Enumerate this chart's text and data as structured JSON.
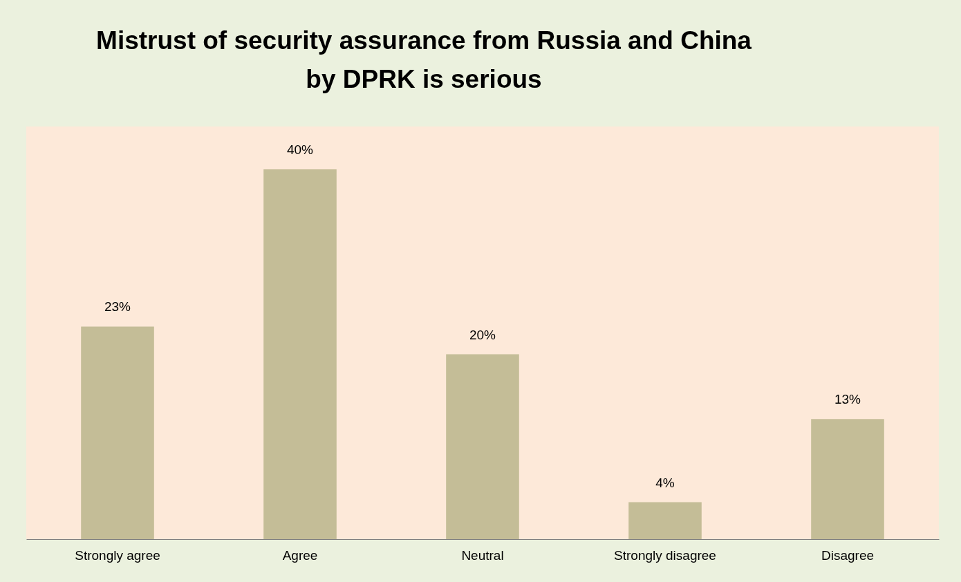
{
  "chart_data": {
    "type": "bar",
    "title": "Mistrust of security assurance from Russia and China\nby DPRK is serious",
    "categories": [
      "Strongly agree",
      "Agree",
      "Neutral",
      "Strongly disagree",
      "Disagree"
    ],
    "values": [
      23,
      40,
      20,
      4,
      13
    ],
    "value_labels": [
      "23%",
      "40%",
      "20%",
      "4%",
      "13%"
    ],
    "color": "#c4bd97"
  }
}
